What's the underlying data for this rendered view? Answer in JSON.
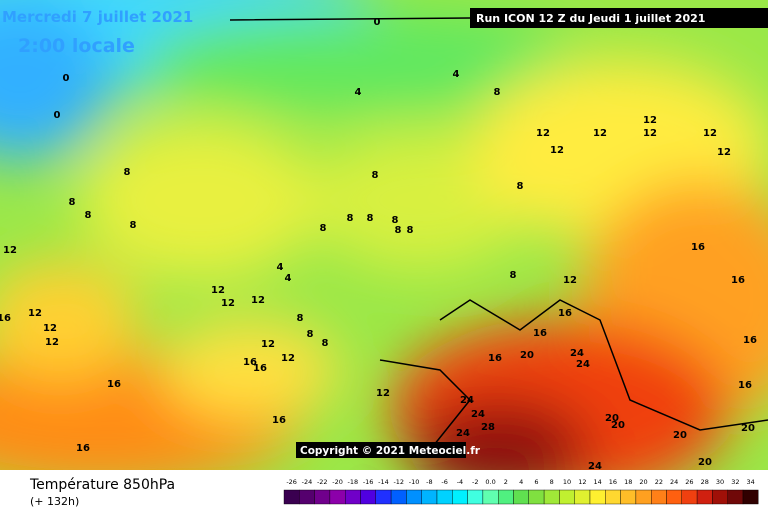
{
  "header": {
    "date": "Mercredi 7 juillet 2021",
    "time": "2:00 locale",
    "run": "Run ICON 12 Z du Jeudi 1 juillet 2021"
  },
  "copyright": "Copyright © 2021 Meteociel.fr",
  "footer": {
    "title": "Température 850hPa",
    "lead": "(+ 132h)"
  },
  "contour_labels": [
    "0",
    "0",
    "4",
    "4",
    "8",
    "12",
    "12",
    "12",
    "12",
    "12",
    "12",
    "12",
    "8",
    "8",
    "8",
    "8",
    "8",
    "8",
    "8",
    "8",
    "8",
    "12",
    "16",
    "16",
    "16",
    "16",
    "16",
    "16",
    "16",
    "20",
    "24",
    "24",
    "24",
    "24",
    "24",
    "28",
    "20",
    "20",
    "20",
    "20",
    "20",
    "24",
    "12",
    "12",
    "12",
    "12",
    "12",
    "16",
    "16",
    "16",
    "16",
    "16",
    "12",
    "8",
    "8",
    "8",
    "4",
    "4",
    "12",
    "12",
    "12",
    "8",
    "8",
    "8",
    "8",
    "0",
    "12",
    "16"
  ],
  "legend": {
    "labels": [
      "-26",
      "-24",
      "-22",
      "-20",
      "-18",
      "-16",
      "-14",
      "-12",
      "-10",
      "-8",
      "-6",
      "-4",
      "-2",
      "0.0",
      "2",
      "4",
      "6",
      "8",
      "10",
      "12",
      "14",
      "16",
      "18",
      "20",
      "22",
      "24",
      "26",
      "28",
      "30",
      "32",
      "34"
    ],
    "colors": [
      "#3a0050",
      "#55006e",
      "#70008c",
      "#8c00aa",
      "#7000c8",
      "#5000e0",
      "#2030ff",
      "#0060ff",
      "#0090ff",
      "#00b4ff",
      "#00d2ff",
      "#00f0ff",
      "#40ffe0",
      "#60ffb0",
      "#50f080",
      "#60e050",
      "#80e040",
      "#a0e838",
      "#c0f030",
      "#e0f030",
      "#fff030",
      "#ffd830",
      "#ffbe28",
      "#ffa020",
      "#ff8018",
      "#ff6010",
      "#f04010",
      "#d02010",
      "#a01008",
      "#700808",
      "#300000"
    ]
  }
}
